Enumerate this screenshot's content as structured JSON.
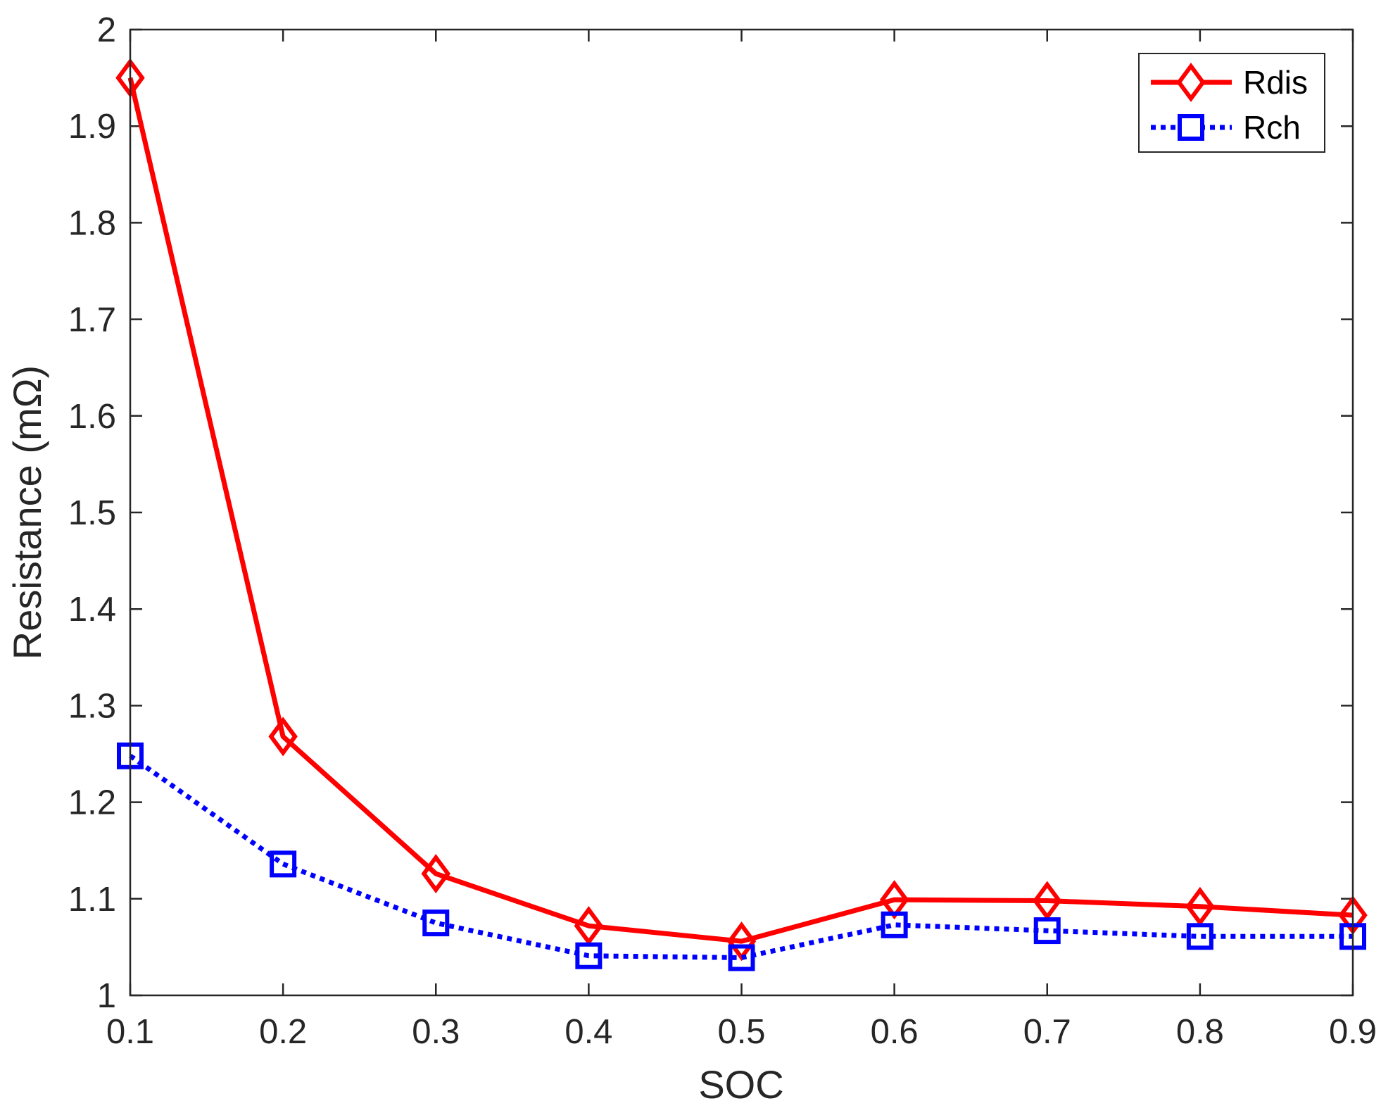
{
  "chart_data": {
    "type": "line",
    "xlabel": "SOC",
    "ylabel": "Resistance (mΩ)",
    "xlim": [
      0.1,
      0.9
    ],
    "ylim": [
      1,
      2
    ],
    "x_ticks": [
      "0.1",
      "0.2",
      "0.3",
      "0.4",
      "0.5",
      "0.6",
      "0.7",
      "0.8",
      "0.9"
    ],
    "y_ticks": [
      "1",
      "1.1",
      "1.2",
      "1.3",
      "1.4",
      "1.5",
      "1.6",
      "1.7",
      "1.8",
      "1.9",
      "2"
    ],
    "x": [
      0.1,
      0.2,
      0.3,
      0.4,
      0.5,
      0.6,
      0.7,
      0.8,
      0.9
    ],
    "grid": false,
    "legend_position": "top-right",
    "series": [
      {
        "name": "Rdis",
        "values": [
          1.95,
          1.268,
          1.126,
          1.072,
          1.056,
          1.099,
          1.098,
          1.092,
          1.083
        ],
        "color": "#ff0000",
        "marker": "diamond",
        "line_style": "solid"
      },
      {
        "name": "Rch",
        "values": [
          1.248,
          1.136,
          1.075,
          1.041,
          1.039,
          1.073,
          1.067,
          1.061,
          1.061
        ],
        "color": "#0000ff",
        "marker": "square",
        "line_style": "dotted"
      }
    ]
  }
}
